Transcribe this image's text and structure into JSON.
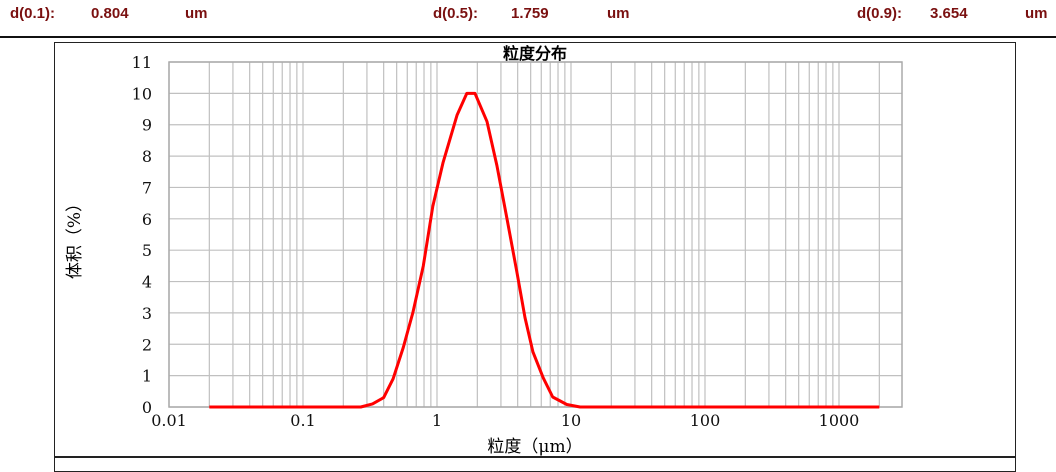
{
  "header": {
    "d10_label": "d(0.1):",
    "d10_value": "0.804",
    "d10_unit": "um",
    "d50_label": "d(0.5):",
    "d50_value": "1.759",
    "d50_unit": "um",
    "d90_label": "d(0.9):",
    "d90_value": "3.654",
    "d90_unit": "um"
  },
  "colors": {
    "header_text": "#7a1010",
    "curve": "#ff0000",
    "grid": "#c0c0c0"
  },
  "chart_data": {
    "type": "line",
    "title": "粒度分布",
    "xlabel": "粒度（μm）",
    "ylabel": "体积（%）",
    "xscale": "log",
    "xlim": [
      0.01,
      3000
    ],
    "ylim": [
      0,
      11
    ],
    "grid": true,
    "x_ticks": [
      "0.01",
      "0.1",
      "1",
      "10",
      "100",
      "1000"
    ],
    "x_tick_values": [
      0.01,
      0.1,
      1,
      10,
      100,
      1000
    ],
    "y_ticks": [
      "0",
      "1",
      "2",
      "3",
      "4",
      "5",
      "6",
      "7",
      "8",
      "9",
      "10",
      "11"
    ],
    "series": [
      {
        "x": [
          0.02,
          0.27,
          0.33,
          0.4,
          0.47,
          0.56,
          0.66,
          0.79,
          0.93,
          1.11,
          1.41,
          1.67,
          1.92,
          2.36,
          2.8,
          3.33,
          3.95,
          4.54,
          5.2,
          6.2,
          7.3,
          9.3,
          11.7,
          2000
        ],
        "y": [
          0,
          0,
          0.1,
          0.3,
          0.9,
          1.9,
          3.0,
          4.5,
          6.4,
          7.8,
          9.3,
          10.0,
          10.0,
          9.1,
          7.7,
          6.0,
          4.3,
          2.85,
          1.76,
          0.93,
          0.32,
          0.08,
          0,
          0
        ]
      }
    ]
  }
}
